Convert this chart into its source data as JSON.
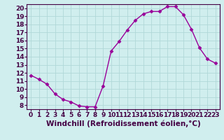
{
  "x": [
    0,
    1,
    2,
    3,
    4,
    5,
    6,
    7,
    8,
    9,
    10,
    11,
    12,
    13,
    14,
    15,
    16,
    17,
    18,
    19,
    20,
    21,
    22,
    23
  ],
  "y": [
    11.7,
    11.2,
    10.6,
    9.4,
    8.7,
    8.4,
    7.9,
    7.8,
    7.8,
    10.4,
    14.7,
    15.9,
    17.3,
    18.5,
    19.3,
    19.6,
    19.6,
    20.2,
    20.2,
    19.2,
    17.4,
    15.1,
    13.7,
    13.2
  ],
  "line_color": "#990099",
  "marker": "D",
  "marker_size": 2.5,
  "bg_color": "#d0eeee",
  "grid_color": "#b0d8d8",
  "xlabel": "Windchill (Refroidissement éolien,°C)",
  "xlim": [
    -0.5,
    23.5
  ],
  "ylim": [
    7.5,
    20.5
  ],
  "yticks": [
    8,
    9,
    10,
    11,
    12,
    13,
    14,
    15,
    16,
    17,
    18,
    19,
    20
  ],
  "xticks": [
    0,
    1,
    2,
    3,
    4,
    5,
    6,
    7,
    8,
    9,
    10,
    11,
    12,
    13,
    14,
    15,
    16,
    17,
    18,
    19,
    20,
    21,
    22,
    23
  ],
  "xlabel_fontsize": 7.5,
  "tick_fontsize": 6.5
}
